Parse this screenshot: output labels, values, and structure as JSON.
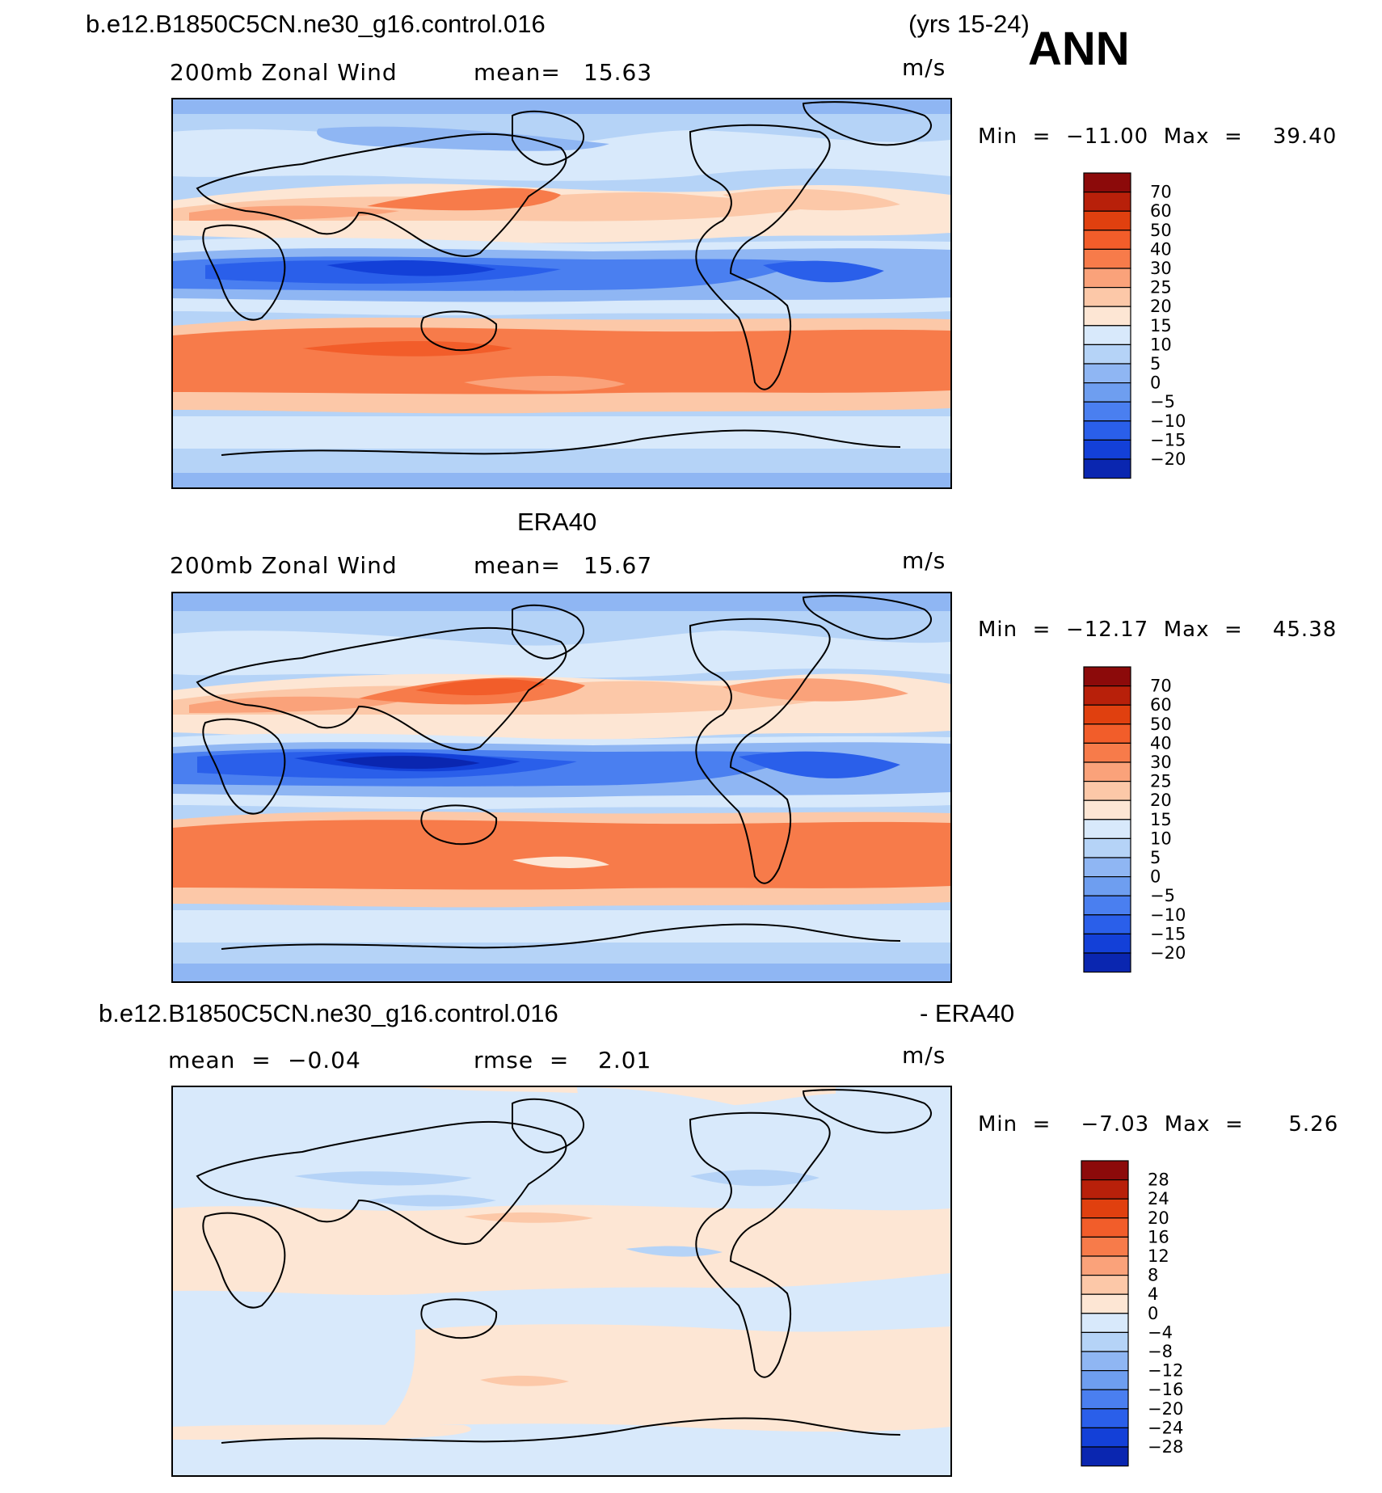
{
  "header": {
    "case_title": "b.e12.B1850C5CN.ne30_g16.control.016",
    "years": "(yrs 15-24)",
    "season": "ANN"
  },
  "panels": [
    {
      "title": "",
      "variable": "200mb Zonal Wind",
      "stat1_label": "mean=",
      "stat1_value": "15.63",
      "stat2_label": "",
      "stat2_value": "",
      "units": "m/s",
      "min_label": "Min  =  −11.00  Max  =    39.40",
      "colorbar": [
        "70",
        "60",
        "50",
        "40",
        "30",
        "25",
        "20",
        "15",
        "10",
        "5",
        "0",
        "−5",
        "−10",
        "−15",
        "−20"
      ]
    },
    {
      "title": "ERA40",
      "variable": "200mb Zonal Wind",
      "stat1_label": "mean=",
      "stat1_value": "15.67",
      "stat2_label": "",
      "stat2_value": "",
      "units": "m/s",
      "min_label": "Min  =  −12.17  Max  =    45.38",
      "colorbar": [
        "70",
        "60",
        "50",
        "40",
        "30",
        "25",
        "20",
        "15",
        "10",
        "5",
        "0",
        "−5",
        "−10",
        "−15",
        "−20"
      ]
    },
    {
      "title": "b.e12.B1850C5CN.ne30_g16.control.016",
      "title_suffix": "- ERA40",
      "variable": "",
      "stat1_label": "mean  =",
      "stat1_value": "−0.04",
      "stat2_label": "rmse  =",
      "stat2_value": "2.01",
      "units": "m/s",
      "min_label": "Min  =    −7.03  Max  =      5.26",
      "colorbar": [
        "28",
        "24",
        "20",
        "16",
        "12",
        "8",
        "4",
        "0",
        "−4",
        "−8",
        "−12",
        "−16",
        "−20",
        "−24",
        "−28"
      ]
    }
  ],
  "colors": {
    "red_ramp": [
      "#8c0a0a",
      "#b8200a",
      "#e0400f",
      "#f25d2a",
      "#f77b4a",
      "#faa27a",
      "#fcc8a8",
      "#fde6d4"
    ],
    "blue_ramp": [
      "#d8e9fb",
      "#b5d3f7",
      "#8fb6f3",
      "#6e9ef0",
      "#4a7ff0",
      "#2a5fea",
      "#1340d8",
      "#0a26b0",
      "#001590"
    ]
  },
  "chart_data": [
    {
      "type": "heatmap",
      "title": "200mb Zonal Wind",
      "units": "m/s",
      "mean": 15.63,
      "min": -11.0,
      "max": 39.4,
      "levels": [
        -20,
        -15,
        -10,
        -5,
        0,
        5,
        10,
        15,
        20,
        25,
        30,
        40,
        50,
        60,
        70
      ]
    },
    {
      "type": "heatmap",
      "title": "ERA40 200mb Zonal Wind",
      "units": "m/s",
      "mean": 15.67,
      "min": -12.17,
      "max": 45.38,
      "levels": [
        -20,
        -15,
        -10,
        -5,
        0,
        5,
        10,
        15,
        20,
        25,
        30,
        40,
        50,
        60,
        70
      ]
    },
    {
      "type": "heatmap",
      "title": "b.e12.B1850C5CN.ne30_g16.control.016 - ERA40",
      "units": "m/s",
      "mean": -0.04,
      "rmse": 2.01,
      "min": -7.03,
      "max": 5.26,
      "levels": [
        -28,
        -24,
        -20,
        -16,
        -12,
        -8,
        -4,
        0,
        4,
        8,
        12,
        16,
        20,
        24,
        28
      ]
    }
  ]
}
